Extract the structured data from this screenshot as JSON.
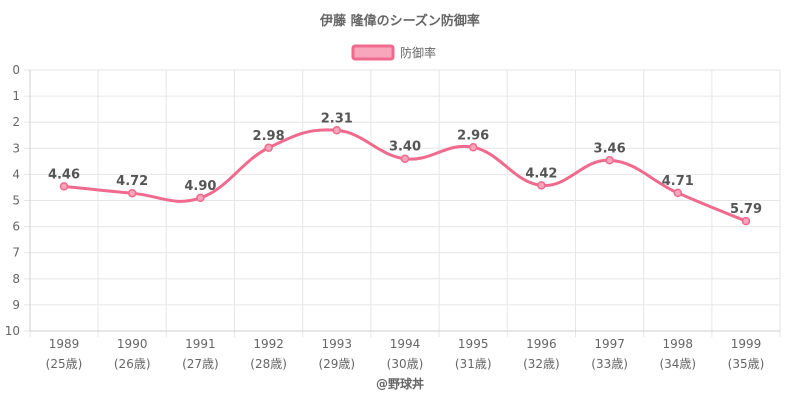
{
  "chart_data": {
    "type": "line",
    "title": "伊藤 隆偉のシーズン防御率",
    "categories": [
      "1989",
      "1990",
      "1991",
      "1992",
      "1993",
      "1994",
      "1995",
      "1996",
      "1997",
      "1998",
      "1999"
    ],
    "category_sublabels": [
      "(25歳)",
      "(26歳)",
      "(27歳)",
      "(28歳)",
      "(29歳)",
      "(30歳)",
      "(31歳)",
      "(32歳)",
      "(33歳)",
      "(34歳)",
      "(35歳)"
    ],
    "series": [
      {
        "name": "防御率",
        "values": [
          4.46,
          4.72,
          4.9,
          2.98,
          2.31,
          3.4,
          2.96,
          4.42,
          3.46,
          4.71,
          5.79
        ],
        "data_labels": [
          "4.46",
          "4.72",
          "4.90",
          "2.98",
          "2.31",
          "3.40",
          "2.96",
          "4.42",
          "3.46",
          "4.71",
          "5.79"
        ],
        "color": "#f06a8e",
        "fill_color": "#f7a6bc"
      }
    ],
    "y_ticks": [
      "0",
      "1",
      "2",
      "3",
      "4",
      "5",
      "6",
      "7",
      "8",
      "9",
      "10"
    ],
    "ylim": [
      0,
      10
    ],
    "y_reversed": true,
    "grid": true,
    "legend_position": "top-center",
    "xlabel": "",
    "ylabel": ""
  },
  "footer": {
    "credit": "@野球丼"
  }
}
